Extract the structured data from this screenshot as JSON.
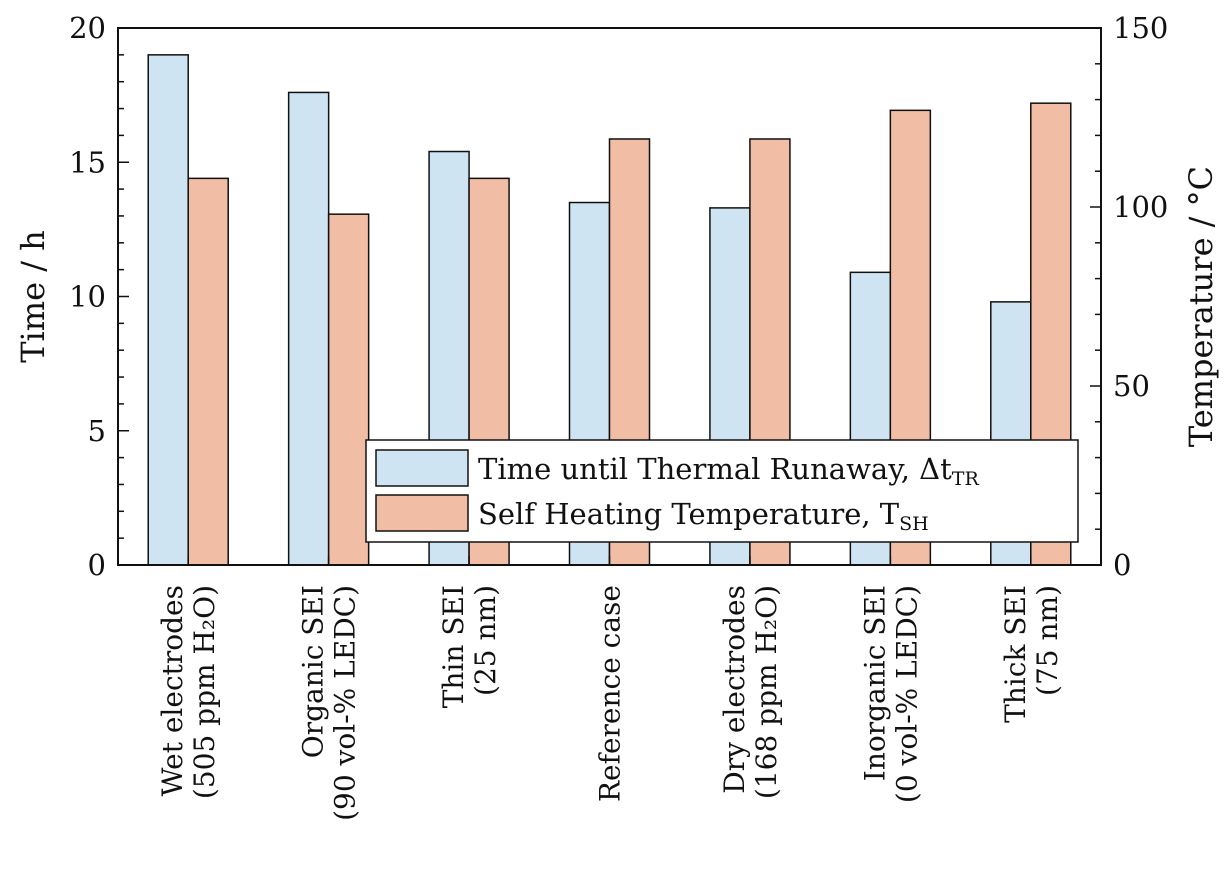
{
  "chart_data": {
    "type": "bar",
    "categories": [
      [
        "Wet electrodes",
        "(505 ppm H₂O)"
      ],
      [
        "Organic SEI",
        "(90 vol-% LEDC)"
      ],
      [
        "Thin SEI",
        "(25 nm)"
      ],
      [
        "Reference case"
      ],
      [
        "Dry electrodes",
        "(168 ppm H₂O)"
      ],
      [
        "Inorganic SEI",
        "(0 vol-% LEDC)"
      ],
      [
        "Thick SEI",
        "(75 nm)"
      ]
    ],
    "series": [
      {
        "name": "Time until Thermal Runaway, Δt",
        "name_sub": "TR",
        "axis": "left",
        "color": "#cfe4f2",
        "values": [
          19.0,
          17.6,
          15.4,
          13.5,
          13.3,
          10.9,
          9.8
        ]
      },
      {
        "name": "Self Heating Temperature, T",
        "name_sub": "SH",
        "axis": "right",
        "color": "#f2bda5",
        "values": [
          108,
          98,
          108,
          119,
          119,
          127,
          129
        ]
      }
    ],
    "ylabel": "Time / h",
    "ylabel_right": "Temperature / °C",
    "ylim": [
      0,
      20
    ],
    "ylim_right": [
      0,
      150
    ],
    "yticks": [
      0,
      5,
      10,
      15,
      20
    ],
    "yticks_right": [
      0,
      50,
      100,
      150
    ],
    "grid": false,
    "legend_position": "bottom-right"
  }
}
